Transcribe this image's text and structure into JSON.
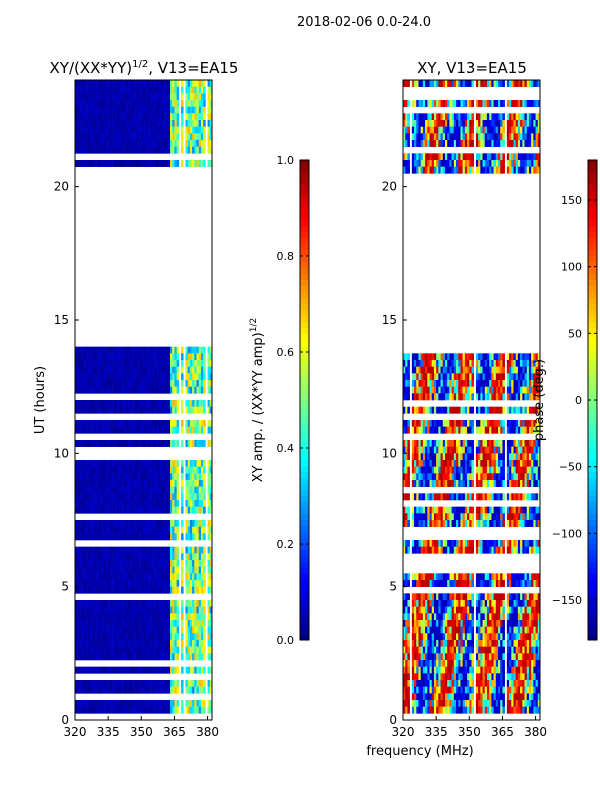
{
  "figure": {
    "suptitle": "2018-02-06 0.0-24.0",
    "xlabel": "frequency (MHz)"
  },
  "chart_data": [
    {
      "type": "heatmap",
      "title_base": "XY/(XX*YY)",
      "title_exp": "1/2",
      "title_suffix": ", V13=EA15",
      "ylabel": "UT (hours)",
      "xticks": [
        "320",
        "335",
        "350",
        "365",
        "380"
      ],
      "xtick_values": [
        320,
        335,
        350,
        365,
        380
      ],
      "yticks": [
        "0",
        "5",
        "10",
        "15",
        "20"
      ],
      "ytick_values": [
        0,
        5,
        10,
        15,
        20
      ],
      "xlim": [
        320,
        382
      ],
      "ylim": [
        0,
        24
      ],
      "blank_ut_ranges": [
        [
          14.0,
          20.6
        ]
      ],
      "colorbar": {
        "label_base": "XY amp. / (XX*YY amp)",
        "label_exp": "1/2",
        "ticks": [
          "0.0",
          "0.2",
          "0.4",
          "0.6",
          "0.8",
          "1.0"
        ],
        "tick_values": [
          0.0,
          0.2,
          0.4,
          0.6,
          0.8,
          1.0
        ],
        "range": [
          0.0,
          1.0
        ],
        "colormap": "jet"
      }
    },
    {
      "type": "heatmap",
      "title": "XY, V13=EA15",
      "xticks": [
        "320",
        "335",
        "350",
        "365",
        "380"
      ],
      "xtick_values": [
        320,
        335,
        350,
        365,
        380
      ],
      "yticks": [
        "0",
        "5",
        "10",
        "15",
        "20"
      ],
      "ytick_values": [
        0,
        5,
        10,
        15,
        20
      ],
      "xlim": [
        320,
        382
      ],
      "ylim": [
        0,
        24
      ],
      "blank_ut_ranges": [
        [
          14.0,
          20.6
        ]
      ],
      "colorbar": {
        "label": "phase (deg.)",
        "ticks": [
          "−150",
          "−100",
          "−50",
          "0",
          "50",
          "100",
          "150"
        ],
        "tick_values": [
          -150,
          -100,
          -50,
          0,
          50,
          100,
          150
        ],
        "range": [
          -180,
          180
        ],
        "colormap": "jet"
      }
    }
  ]
}
